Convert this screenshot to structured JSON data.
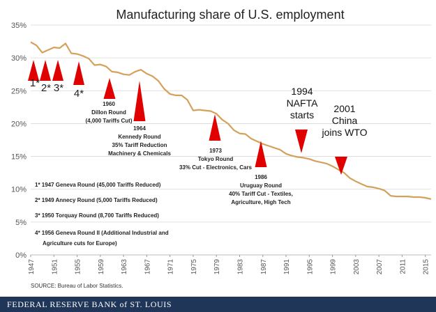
{
  "chart_data": {
    "type": "line",
    "title": "Manufacturing share of U.S. employment",
    "ylim": [
      0,
      35
    ],
    "xlim": [
      1947,
      2016
    ],
    "y_ticks": [
      "0%",
      "5%",
      "10%",
      "15%",
      "20%",
      "25%",
      "30%",
      "35%"
    ],
    "x_ticks": [
      "1947",
      "1951",
      "1955",
      "1959",
      "1963",
      "1967",
      "1971",
      "1975",
      "1979",
      "1983",
      "1987",
      "1991",
      "1995",
      "1999",
      "2003",
      "2007",
      "2011",
      "2015"
    ],
    "grid": true,
    "series": [
      {
        "color": "#d4a15a",
        "x": [
          1947,
          1948,
          1949,
          1950,
          1951,
          1952,
          1953,
          1954,
          1955,
          1956,
          1957,
          1958,
          1959,
          1960,
          1961,
          1962,
          1963,
          1964,
          1965,
          1966,
          1967,
          1968,
          1969,
          1970,
          1971,
          1972,
          1973,
          1974,
          1975,
          1976,
          1977,
          1978,
          1979,
          1980,
          1981,
          1982,
          1983,
          1984,
          1985,
          1986,
          1987,
          1988,
          1989,
          1990,
          1991,
          1992,
          1993,
          1994,
          1995,
          1996,
          1997,
          1998,
          1999,
          2000,
          2001,
          2002,
          2003,
          2004,
          2005,
          2006,
          2007,
          2008,
          2009,
          2010,
          2011,
          2012,
          2013,
          2014,
          2015,
          2016
        ],
        "y": [
          32.4,
          31.9,
          30.8,
          31.2,
          31.6,
          31.5,
          32.2,
          30.7,
          30.6,
          30.3,
          29.9,
          28.9,
          29.0,
          28.7,
          27.9,
          27.8,
          27.5,
          27.4,
          27.9,
          28.2,
          27.6,
          27.2,
          26.5,
          25.3,
          24.5,
          24.3,
          24.3,
          23.6,
          22.0,
          22.1,
          22.0,
          21.9,
          21.5,
          20.6,
          20.0,
          19.0,
          18.5,
          18.4,
          17.7,
          17.3,
          16.9,
          16.6,
          16.3,
          16.0,
          15.4,
          15.1,
          14.9,
          14.8,
          14.6,
          14.3,
          14.1,
          13.9,
          13.5,
          13.0,
          12.5,
          11.7,
          11.2,
          10.8,
          10.4,
          10.3,
          10.1,
          9.8,
          9.0,
          8.9,
          8.9,
          8.9,
          8.8,
          8.8,
          8.7,
          8.5
        ]
      }
    ],
    "markers": [
      {
        "x": 1947,
        "label": "1*"
      },
      {
        "x": 1949,
        "label": "2*"
      },
      {
        "x": 1950,
        "label": "3*"
      },
      {
        "x": 1956,
        "label": "4*"
      },
      {
        "x": 1960,
        "label": "1960\nDillon Round\n(4,000 Tariffs Cut)"
      },
      {
        "x": 1964,
        "label": "1964\nKennedy Round\n35% Tariff Reduction\nMachinery & Chemicals"
      },
      {
        "x": 1973,
        "label": "1973\nTokyo Round\n33% Cut - Electronics, Cars"
      },
      {
        "x": 1986,
        "label": "1986\nUruguay Round\n40% Tariff Cut - Textiles,\nAgriculture, High Tech"
      },
      {
        "x": 1994,
        "label": "1994\nNAFTA\nstarts"
      },
      {
        "x": 2001,
        "label": "2001\nChina\njoins WTO"
      }
    ],
    "footnotes": [
      "1* 1947 Geneva Round  (45,000 Tariffs Reduced)",
      "2* 1949 Annecy Round (5,000 Tariffs Reduced)",
      "3* 1950 Torquay Round (8,700 Tariffs Reduced)",
      "4* 1956 Geneva Round  II (Additional Industrial and",
      "Agriculture cuts for Europe)"
    ]
  },
  "source": "SOURCE: Bureau of Labor Statistics.",
  "brand": "FEDERAL RESERVE BANK of ST. LOUIS",
  "colors": {
    "line": "#d4a15a",
    "marker": "#e00000",
    "footer": "#1f3658"
  }
}
